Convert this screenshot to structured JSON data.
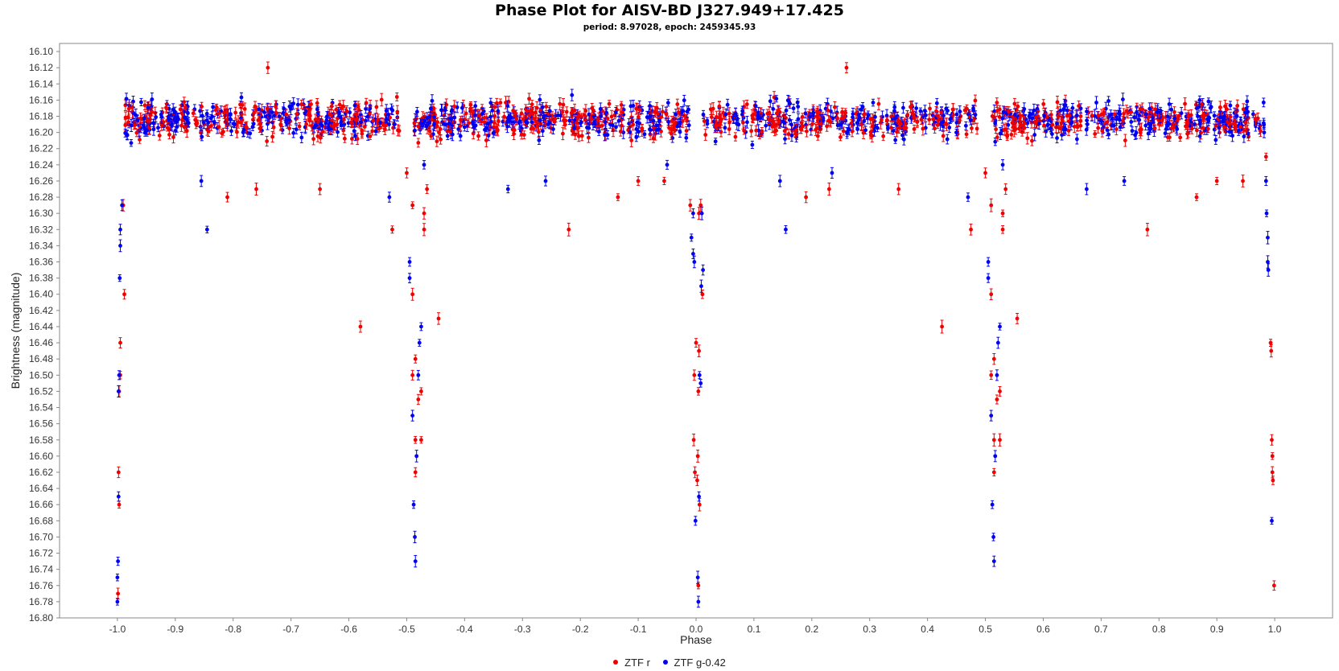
{
  "chart_data": {
    "type": "scatter",
    "title": "Phase Plot for AISV-BD J327.949+17.425",
    "subtitle": "period: 8.97028, epoch: 2459345.93",
    "xlabel": "Phase",
    "ylabel": "Brightness (magnitude)",
    "xlim": [
      -1.1,
      1.1
    ],
    "ylim": [
      16.8,
      16.09
    ],
    "y_inverted": true,
    "x_ticks": [
      "-1.0",
      "-0.9",
      "-0.8",
      "-0.7",
      "-0.6",
      "-0.5",
      "-0.4",
      "-0.3",
      "-0.2",
      "-0.1",
      "0.0",
      "0.1",
      "0.2",
      "0.3",
      "0.4",
      "0.5",
      "0.6",
      "0.7",
      "0.8",
      "0.9",
      "1.0"
    ],
    "y_ticks": [
      "16.10",
      "16.12",
      "16.14",
      "16.16",
      "16.18",
      "16.20",
      "16.22",
      "16.24",
      "16.26",
      "16.28",
      "16.30",
      "16.32",
      "16.34",
      "16.36",
      "16.38",
      "16.40",
      "16.42",
      "16.44",
      "16.46",
      "16.48",
      "16.50",
      "16.52",
      "16.54",
      "16.56",
      "16.58",
      "16.60",
      "16.62",
      "16.64",
      "16.66",
      "16.68",
      "16.70",
      "16.72",
      "16.74",
      "16.76",
      "16.78",
      "16.80"
    ],
    "grid": false,
    "legend_position": "bottom-center",
    "error_bars": true,
    "baseline_magnitude": 16.185,
    "scatter_magnitude": 0.018,
    "series": [
      {
        "name": "ZTF r",
        "color": "#f00000",
        "points": [
          [
            0.0,
            16.46
          ],
          [
            0.005,
            16.47
          ],
          [
            -0.003,
            16.5
          ],
          [
            0.004,
            16.52
          ],
          [
            -0.004,
            16.58
          ],
          [
            0.003,
            16.6
          ],
          [
            0.002,
            16.63
          ],
          [
            0.006,
            16.66
          ],
          [
            -0.002,
            16.62
          ],
          [
            0.004,
            16.76
          ],
          [
            0.005,
            16.3
          ],
          [
            0.008,
            16.29
          ],
          [
            -0.01,
            16.29
          ],
          [
            0.011,
            16.4
          ],
          [
            -0.5,
            16.25
          ],
          [
            -0.49,
            16.29
          ],
          [
            -0.49,
            16.4
          ],
          [
            -0.49,
            16.5
          ],
          [
            -0.485,
            16.48
          ],
          [
            -0.485,
            16.58
          ],
          [
            -0.485,
            16.62
          ],
          [
            -0.48,
            16.53
          ],
          [
            -0.475,
            16.52
          ],
          [
            -0.475,
            16.58
          ],
          [
            -0.47,
            16.3
          ],
          [
            -0.47,
            16.32
          ],
          [
            -0.465,
            16.27
          ],
          [
            -0.445,
            16.43
          ],
          [
            -0.525,
            16.32
          ],
          [
            -0.58,
            16.44
          ],
          [
            -0.65,
            16.27
          ],
          [
            -0.74,
            16.12
          ],
          [
            -0.76,
            16.27
          ],
          [
            -0.81,
            16.28
          ],
          [
            -0.22,
            16.32
          ],
          [
            -0.135,
            16.28
          ],
          [
            -0.1,
            16.26
          ],
          [
            -0.055,
            16.26
          ],
          [
            0.19,
            16.28
          ],
          [
            0.23,
            16.27
          ],
          [
            0.26,
            16.12
          ],
          [
            0.35,
            16.27
          ],
          [
            0.425,
            16.44
          ],
          [
            0.475,
            16.32
          ],
          [
            0.5,
            16.25
          ],
          [
            0.51,
            16.29
          ],
          [
            0.51,
            16.4
          ],
          [
            0.51,
            16.5
          ],
          [
            0.515,
            16.48
          ],
          [
            0.515,
            16.58
          ],
          [
            0.515,
            16.62
          ],
          [
            0.52,
            16.53
          ],
          [
            0.525,
            16.52
          ],
          [
            0.525,
            16.58
          ],
          [
            0.53,
            16.3
          ],
          [
            0.53,
            16.32
          ],
          [
            0.535,
            16.27
          ],
          [
            0.555,
            16.43
          ],
          [
            0.78,
            16.32
          ],
          [
            0.865,
            16.28
          ],
          [
            0.9,
            16.26
          ],
          [
            0.945,
            16.26
          ],
          [
            -0.995,
            16.46
          ],
          [
            -0.995,
            16.5
          ],
          [
            -0.997,
            16.52
          ],
          [
            -0.998,
            16.62
          ],
          [
            -0.997,
            16.66
          ],
          [
            -0.999,
            16.77
          ],
          [
            -0.99,
            16.29
          ],
          [
            -0.988,
            16.4
          ],
          [
            0.993,
            16.46
          ],
          [
            0.994,
            16.47
          ],
          [
            0.995,
            16.58
          ],
          [
            0.996,
            16.6
          ],
          [
            0.997,
            16.63
          ],
          [
            0.996,
            16.62
          ],
          [
            0.999,
            16.76
          ],
          [
            0.985,
            16.23
          ]
        ]
      },
      {
        "name": "ZTF g-0.42",
        "color": "#0000f0",
        "points": [
          [
            -0.005,
            16.3
          ],
          [
            -0.008,
            16.33
          ],
          [
            -0.005,
            16.35
          ],
          [
            -0.003,
            16.36
          ],
          [
            -0.001,
            16.68
          ],
          [
            0.003,
            16.75
          ],
          [
            0.004,
            16.78
          ],
          [
            0.005,
            16.65
          ],
          [
            0.006,
            16.5
          ],
          [
            0.008,
            16.51
          ],
          [
            0.009,
            16.39
          ],
          [
            0.012,
            16.37
          ],
          [
            0.01,
            16.3
          ],
          [
            -0.495,
            16.36
          ],
          [
            -0.495,
            16.38
          ],
          [
            -0.49,
            16.55
          ],
          [
            -0.488,
            16.66
          ],
          [
            -0.486,
            16.7
          ],
          [
            -0.485,
            16.73
          ],
          [
            -0.483,
            16.6
          ],
          [
            -0.48,
            16.5
          ],
          [
            -0.478,
            16.46
          ],
          [
            -0.475,
            16.44
          ],
          [
            -0.47,
            16.24
          ],
          [
            -0.53,
            16.28
          ],
          [
            -0.845,
            16.32
          ],
          [
            -0.855,
            16.26
          ],
          [
            -0.325,
            16.27
          ],
          [
            -0.26,
            16.26
          ],
          [
            -0.05,
            16.24
          ],
          [
            0.155,
            16.32
          ],
          [
            0.145,
            16.26
          ],
          [
            0.235,
            16.25
          ],
          [
            0.47,
            16.28
          ],
          [
            0.505,
            16.36
          ],
          [
            0.505,
            16.38
          ],
          [
            0.51,
            16.55
          ],
          [
            0.512,
            16.66
          ],
          [
            0.514,
            16.7
          ],
          [
            0.515,
            16.73
          ],
          [
            0.517,
            16.6
          ],
          [
            0.52,
            16.5
          ],
          [
            0.522,
            16.46
          ],
          [
            0.525,
            16.44
          ],
          [
            0.53,
            16.24
          ],
          [
            0.675,
            16.27
          ],
          [
            0.74,
            16.26
          ],
          [
            -0.995,
            16.32
          ],
          [
            -0.995,
            16.34
          ],
          [
            -0.996,
            16.38
          ],
          [
            -0.997,
            16.5
          ],
          [
            -0.998,
            16.52
          ],
          [
            -0.998,
            16.65
          ],
          [
            -0.999,
            16.73
          ],
          [
            -1.0,
            16.75
          ],
          [
            -1.0,
            16.78
          ],
          [
            -0.992,
            16.29
          ],
          [
            0.985,
            16.26
          ],
          [
            0.986,
            16.3
          ],
          [
            0.988,
            16.33
          ],
          [
            0.988,
            16.36
          ],
          [
            0.989,
            16.37
          ],
          [
            0.995,
            16.68
          ]
        ]
      }
    ]
  }
}
